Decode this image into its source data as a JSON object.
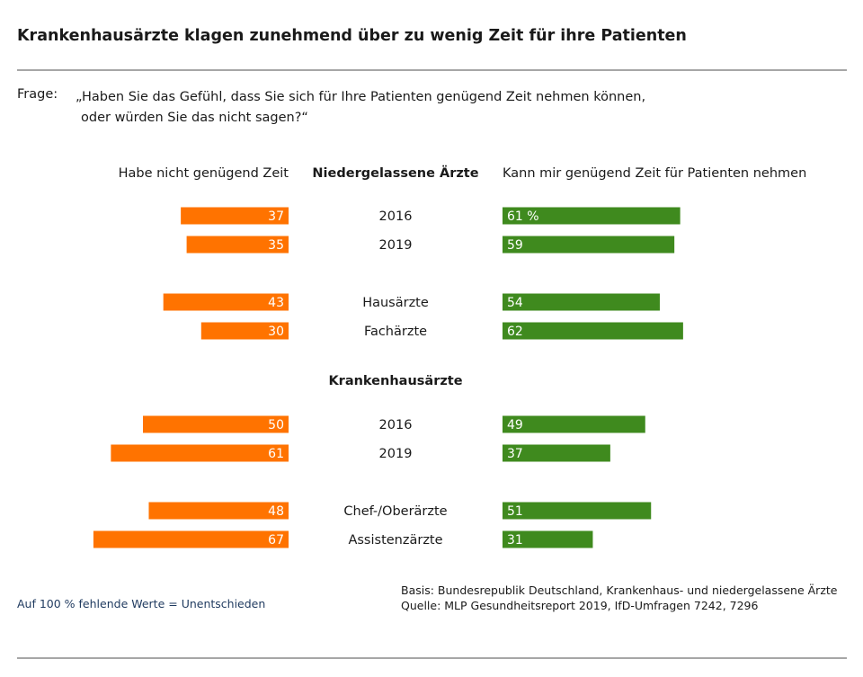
{
  "title": "Krankenhausärzte klagen zunehmend über zu wenig Zeit für ihre Patienten",
  "question": {
    "label": "Frage:",
    "line1": "„Haben Sie das Gefühl, dass Sie sich für Ihre Patienten genügend Zeit nehmen können,",
    "line2": "oder würden Sie das nicht sagen?“"
  },
  "colors": {
    "left": "#ff7300",
    "right": "#3f8a1e",
    "label_on_bar": "#ffffff"
  },
  "chart_data": {
    "type": "bar",
    "orientation": "diverging-horizontal",
    "unit": "%",
    "left_header": "Habe nicht genügend Zeit",
    "right_header": "Kann mir genügend Zeit für Patienten nehmen",
    "series": [
      {
        "name": "Habe nicht genügend Zeit",
        "side": "left"
      },
      {
        "name": "Kann mir genügend Zeit für Patienten nehmen",
        "side": "right"
      }
    ],
    "groups": [
      {
        "header": "Niedergelassene Ärzte",
        "rows": [
          {
            "label": "2016",
            "left": 37,
            "right": 61,
            "right_label": "61 %"
          },
          {
            "label": "2019",
            "left": 35,
            "right": 59
          },
          {
            "label": "Hausärzte",
            "left": 43,
            "right": 54
          },
          {
            "label": "Fachärzte",
            "left": 30,
            "right": 62
          }
        ]
      },
      {
        "header": "Krankenhausärzte",
        "rows": [
          {
            "label": "2016",
            "left": 50,
            "right": 49
          },
          {
            "label": "2019",
            "left": 61,
            "right": 37
          },
          {
            "label": "Chef-/Oberärzte",
            "left": 48,
            "right": 51
          },
          {
            "label": "Assistenzärzte",
            "left": 67,
            "right": 31
          }
        ]
      }
    ]
  },
  "footnote": "Auf 100 % fehlende Werte = Unentschieden",
  "source": {
    "basis": "Basis: Bundesrepublik Deutschland, Krankenhaus- und niedergelassene Ärzte",
    "quelle": "Quelle: MLP Gesundheitsreport 2019, IfD-Umfragen 7242, 7296"
  }
}
